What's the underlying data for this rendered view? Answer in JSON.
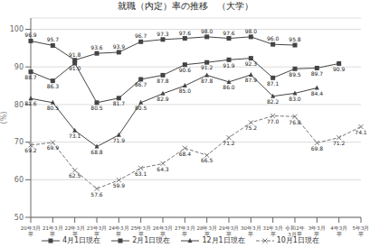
{
  "chart_data": {
    "type": "line",
    "title": "就職（内定）率の推移　（大学）",
    "ylabel": "(%)",
    "categories": [
      "20年3月\n卒",
      "21年3月\n卒",
      "22年3月\n卒",
      "23年3月\n卒",
      "24年3月\n卒",
      "25年3月\n卒",
      "26年3月\n卒",
      "27年3月\n卒",
      "28年3月\n卒",
      "29年3月\n卒",
      "30年3月\n卒",
      "31年3月\n卒",
      "令和2年\n3月卒",
      "3年3月\n卒",
      "4年3月\n卒",
      "5年3月\n卒"
    ],
    "ylim": [
      50,
      103
    ],
    "yticks": [
      50,
      60,
      70,
      80,
      90,
      100
    ],
    "grid": true,
    "legend": "bottom",
    "data_labels": true,
    "series": [
      {
        "name": "4月1日現在",
        "color": "#444444",
        "marker": "square",
        "line_style": "solid",
        "values": [
          96.9,
          95.7,
          91.8,
          93.6,
          93.9,
          96.7,
          97.3,
          97.6,
          98.0,
          97.6,
          98.0,
          96.0,
          95.8,
          null,
          null,
          null
        ],
        "value_labels": [
          "96.9",
          "95.7",
          "91.8",
          "93.6",
          "93.9",
          "96.7",
          "97.3",
          "97.6",
          "98.0",
          "97.6",
          "98.0",
          "96.0",
          "95.8",
          null,
          null,
          null
        ]
      },
      {
        "name": "2月1日現在",
        "color": "#444444",
        "marker": "square",
        "line_style": "solid",
        "values": [
          88.7,
          86.3,
          91.0,
          80.5,
          81.7,
          86.7,
          87.8,
          90.6,
          91.2,
          91.9,
          92.3,
          87.1,
          89.5,
          89.7,
          90.9,
          null
        ],
        "value_labels": [
          "88.7",
          "86.3",
          "91.0",
          "80.5",
          "81.7",
          "86.7",
          "87.8",
          "90.6",
          "91.2",
          "91.9",
          "92.3",
          "87.1",
          "89.5",
          "89.7",
          "90.9",
          null
        ]
      },
      {
        "name": "12月1日現在",
        "color": "#444444",
        "marker": "triangle",
        "line_style": "solid",
        "values": [
          81.6,
          80.5,
          73.1,
          68.8,
          71.9,
          80.5,
          82.9,
          85.0,
          87.8,
          86.0,
          87.9,
          82.2,
          83.0,
          84.4,
          null,
          null
        ],
        "value_labels": [
          "81.6",
          "80.5",
          "73.1",
          "68.8",
          "71.9",
          "80.5",
          "82.9",
          "85.0",
          "87.8",
          "86.0",
          "87.9",
          "82.2",
          "83.0",
          "84.4",
          null,
          null
        ]
      },
      {
        "name": "10月1日現在",
        "color": "#777777",
        "marker": "x",
        "line_style": "dashed",
        "values": [
          69.2,
          69.9,
          62.5,
          57.6,
          59.9,
          63.1,
          64.3,
          68.4,
          66.5,
          71.2,
          75.2,
          77.0,
          76.8,
          69.8,
          71.2,
          74.1
        ],
        "value_labels": [
          "69.2",
          "69.9",
          "62.5",
          "57.6",
          "59.9",
          "63.1",
          "64.3",
          "68.4",
          "66.5",
          "71.2",
          "75.2",
          "77.0",
          "76.8",
          "69.8",
          "71.2",
          "74.1"
        ]
      }
    ]
  }
}
